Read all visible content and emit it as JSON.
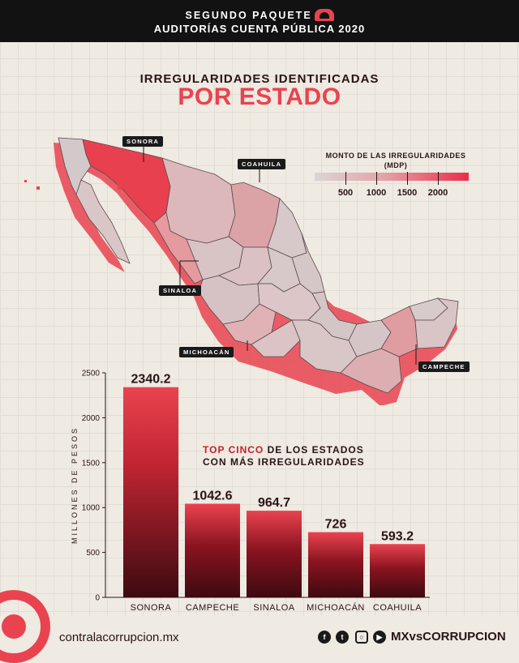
{
  "header": {
    "line1": "SEGUNDO PAQUETE DE",
    "line2": "AUDITORÍAS CUENTA PÚBLICA 2020"
  },
  "heading": {
    "line1": "IRREGULARIDADES IDENTIFICADAS",
    "line2": "POR ESTADO"
  },
  "legend": {
    "title_line1": "MONTO DE LAS IRREGULARIDADES",
    "title_line2": "(MDP)",
    "ticks": [
      "500",
      "1000",
      "1500",
      "2000"
    ]
  },
  "map_labels": {
    "sonora": "SONORA",
    "coahuila": "COAHUILA",
    "sinaloa": "SINALOA",
    "michoacan": "MICHOACÁN",
    "campeche": "CAMPECHE"
  },
  "colors": {
    "accent": "#e9434f",
    "dark": "#2a1416",
    "bar_dark": "#3d0a10"
  },
  "chart_note": {
    "highlight": "TOP CINCO",
    "rest_line1": " DE LOS ESTADOS",
    "line2": "CON MÁS IRREGULARIDADES"
  },
  "chart_data": {
    "type": "bar",
    "categories": [
      "SONORA",
      "CAMPECHE",
      "SINALOA",
      "MICHOACÁN",
      "COAHUILA"
    ],
    "values": [
      2340.2,
      1042.6,
      964.7,
      726,
      593.2
    ],
    "value_labels": [
      "2340.2",
      "1042.6",
      "964.7",
      "726",
      "593.2"
    ],
    "ylabel": "MILLONES DE PESOS",
    "ylim": [
      0,
      2500
    ],
    "yticks": [
      0,
      500,
      1000,
      1500,
      2000,
      2500
    ],
    "grid": false
  },
  "footer": {
    "url": "contralacorrupcion.mx",
    "handle": "MXvsCORRUPCION",
    "social_icons": [
      "facebook-icon",
      "twitter-icon",
      "instagram-icon",
      "youtube-icon"
    ]
  }
}
